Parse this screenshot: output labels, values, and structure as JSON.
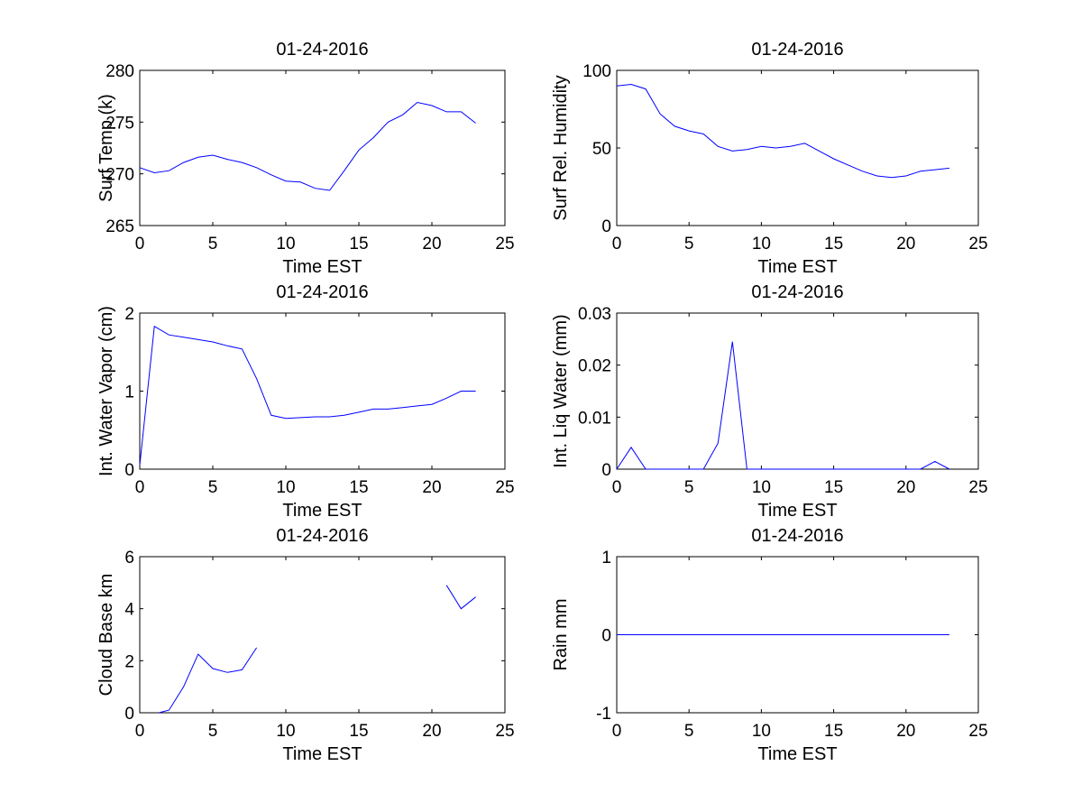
{
  "colors": {
    "line": "#0000ff",
    "axes": "#000000",
    "background": "#ffffff"
  },
  "chart_data": [
    {
      "id": "surf-temp",
      "type": "line",
      "title": "01-24-2016",
      "xlabel": "Time EST",
      "ylabel": "Surf Temp (k)",
      "xlim": [
        0,
        25
      ],
      "ylim": [
        265,
        280
      ],
      "xticks": [
        0,
        5,
        10,
        15,
        20,
        25
      ],
      "xticklabels": [
        "0",
        "5",
        "10",
        "15",
        "20",
        "25"
      ],
      "yticks": [
        265,
        270,
        275,
        280
      ],
      "yticklabels": [
        "265",
        "270",
        "275",
        "280"
      ],
      "series": [
        {
          "name": "Surf Temp",
          "segments": [
            [
              [
                0,
                270.6
              ],
              [
                1,
                270.1
              ],
              [
                2,
                270.3
              ],
              [
                3,
                271.1
              ],
              [
                4,
                271.6
              ],
              [
                5,
                271.8
              ],
              [
                6,
                271.4
              ],
              [
                7,
                271.1
              ],
              [
                8,
                270.6
              ],
              [
                9,
                269.9
              ],
              [
                10,
                269.3
              ],
              [
                11,
                269.2
              ],
              [
                12,
                268.6
              ],
              [
                13,
                268.4
              ],
              [
                14,
                270.3
              ],
              [
                15,
                272.3
              ],
              [
                16,
                273.5
              ],
              [
                17,
                275.0
              ],
              [
                18,
                275.7
              ],
              [
                19,
                276.9
              ],
              [
                20,
                276.6
              ],
              [
                21,
                276.0
              ],
              [
                22,
                276.0
              ],
              [
                23,
                274.9
              ]
            ]
          ]
        }
      ]
    },
    {
      "id": "surf-rh",
      "type": "line",
      "title": "01-24-2016",
      "xlabel": "Time EST",
      "ylabel": "Surf Rel. Humidity",
      "xlim": [
        0,
        25
      ],
      "ylim": [
        0,
        100
      ],
      "xticks": [
        0,
        5,
        10,
        15,
        20,
        25
      ],
      "xticklabels": [
        "0",
        "5",
        "10",
        "15",
        "20",
        "25"
      ],
      "yticks": [
        0,
        50,
        100
      ],
      "yticklabels": [
        "0",
        "50",
        "100"
      ],
      "series": [
        {
          "name": "Surf Rel. Humidity",
          "segments": [
            [
              [
                0,
                90
              ],
              [
                1,
                91
              ],
              [
                2,
                88
              ],
              [
                3,
                72
              ],
              [
                4,
                64
              ],
              [
                5,
                61
              ],
              [
                6,
                59
              ],
              [
                7,
                51
              ],
              [
                8,
                48
              ],
              [
                9,
                49
              ],
              [
                10,
                51
              ],
              [
                11,
                50
              ],
              [
                12,
                51
              ],
              [
                13,
                53
              ],
              [
                14,
                48
              ],
              [
                15,
                43
              ],
              [
                16,
                39
              ],
              [
                17,
                35
              ],
              [
                18,
                32
              ],
              [
                19,
                31
              ],
              [
                20,
                32
              ],
              [
                21,
                35
              ],
              [
                22,
                36
              ],
              [
                23,
                37
              ]
            ]
          ]
        }
      ]
    },
    {
      "id": "water-vapor",
      "type": "line",
      "title": "01-24-2016",
      "xlabel": "Time EST",
      "ylabel": "Int. Water Vapor (cm)",
      "xlim": [
        0,
        25
      ],
      "ylim": [
        0,
        2
      ],
      "xticks": [
        0,
        5,
        10,
        15,
        20,
        25
      ],
      "xticklabels": [
        "0",
        "5",
        "10",
        "15",
        "20",
        "25"
      ],
      "yticks": [
        0,
        1,
        2
      ],
      "yticklabels": [
        "0",
        "1",
        "2"
      ],
      "series": [
        {
          "name": "Int. Water Vapor",
          "segments": [
            [
              [
                0,
                0.05
              ],
              [
                1,
                1.83
              ],
              [
                2,
                1.72
              ],
              [
                3,
                1.69
              ],
              [
                4,
                1.66
              ],
              [
                5,
                1.63
              ],
              [
                6,
                1.58
              ],
              [
                7,
                1.54
              ],
              [
                8,
                1.16
              ],
              [
                9,
                0.69
              ],
              [
                10,
                0.65
              ],
              [
                11,
                0.66
              ],
              [
                12,
                0.67
              ],
              [
                13,
                0.67
              ],
              [
                14,
                0.69
              ],
              [
                15,
                0.73
              ],
              [
                16,
                0.77
              ],
              [
                17,
                0.77
              ],
              [
                18,
                0.79
              ],
              [
                19,
                0.81
              ],
              [
                20,
                0.83
              ],
              [
                21,
                0.91
              ],
              [
                22,
                1.0
              ],
              [
                23,
                1.0
              ]
            ]
          ]
        }
      ]
    },
    {
      "id": "liq-water",
      "type": "line",
      "title": "01-24-2016",
      "xlabel": "Time EST",
      "ylabel": "Int. Liq Water (mm)",
      "xlim": [
        0,
        25
      ],
      "ylim": [
        0,
        0.03
      ],
      "xticks": [
        0,
        5,
        10,
        15,
        20,
        25
      ],
      "xticklabels": [
        "0",
        "5",
        "10",
        "15",
        "20",
        "25"
      ],
      "yticks": [
        0,
        0.01,
        0.02,
        0.03
      ],
      "yticklabels": [
        "0",
        "0.01",
        "0.02",
        "0.03"
      ],
      "series": [
        {
          "name": "Int. Liq Water",
          "segments": [
            [
              [
                0,
                0
              ],
              [
                1,
                0.0042
              ],
              [
                2,
                0
              ],
              [
                3,
                0
              ],
              [
                4,
                0
              ],
              [
                5,
                0
              ],
              [
                6,
                0
              ],
              [
                7,
                0.005
              ],
              [
                8,
                0.0245
              ],
              [
                9,
                0
              ],
              [
                10,
                0
              ],
              [
                11,
                0
              ],
              [
                12,
                0
              ],
              [
                13,
                0
              ],
              [
                14,
                0
              ],
              [
                15,
                0
              ],
              [
                16,
                0
              ],
              [
                17,
                0
              ],
              [
                18,
                0
              ],
              [
                19,
                0
              ],
              [
                20,
                0
              ],
              [
                21,
                0
              ],
              [
                22,
                0.0015
              ],
              [
                23,
                0
              ]
            ]
          ]
        }
      ]
    },
    {
      "id": "cloud-base",
      "type": "line",
      "title": "01-24-2016",
      "xlabel": "Time EST",
      "ylabel": "Cloud Base km",
      "xlim": [
        0,
        25
      ],
      "ylim": [
        0,
        6
      ],
      "xticks": [
        0,
        5,
        10,
        15,
        20,
        25
      ],
      "xticklabels": [
        "0",
        "5",
        "10",
        "15",
        "20",
        "25"
      ],
      "yticks": [
        0,
        2,
        4,
        6
      ],
      "yticklabels": [
        "0",
        "2",
        "4",
        "6"
      ],
      "series": [
        {
          "name": "Cloud Base",
          "segments": [
            [
              [
                1.3,
                0
              ],
              [
                2,
                0.1
              ],
              [
                3,
                1.0
              ],
              [
                4,
                2.25
              ],
              [
                5,
                1.7
              ],
              [
                6,
                1.55
              ],
              [
                7,
                1.65
              ],
              [
                8,
                2.5
              ]
            ],
            [
              [
                21,
                4.9
              ],
              [
                22,
                4.0
              ],
              [
                23,
                4.45
              ]
            ]
          ]
        }
      ]
    },
    {
      "id": "rain",
      "type": "line",
      "title": "01-24-2016",
      "xlabel": "Time EST",
      "ylabel": "Rain mm",
      "xlim": [
        0,
        25
      ],
      "ylim": [
        -1,
        1
      ],
      "xticks": [
        0,
        5,
        10,
        15,
        20,
        25
      ],
      "xticklabels": [
        "0",
        "5",
        "10",
        "15",
        "20",
        "25"
      ],
      "yticks": [
        -1,
        0,
        1
      ],
      "yticklabels": [
        "-1",
        "0",
        "1"
      ],
      "series": [
        {
          "name": "Rain",
          "segments": [
            [
              [
                0,
                0
              ],
              [
                23,
                0
              ]
            ]
          ]
        }
      ]
    }
  ]
}
